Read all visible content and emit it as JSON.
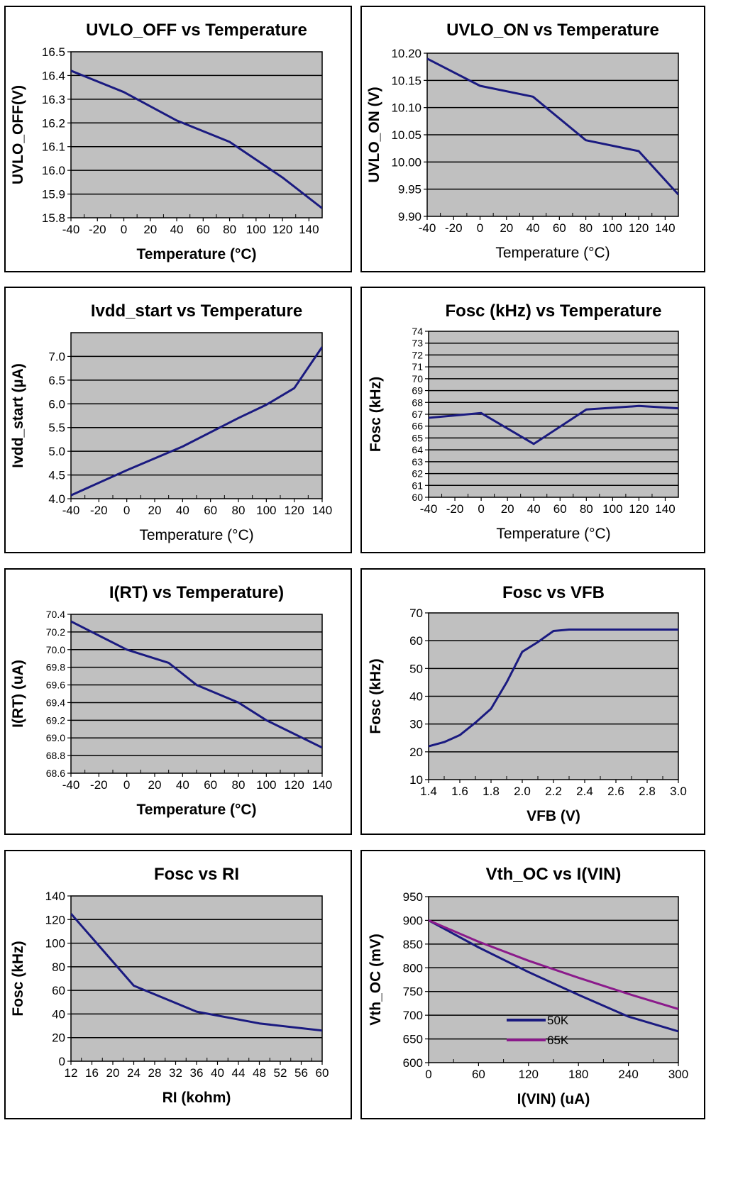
{
  "colors": {
    "plot_bg": "#c0c0c0",
    "line_primary": "#1a1a80",
    "line_secondary": "#8b1a8b",
    "grid": "#000000"
  },
  "chart_data": [
    {
      "id": "uvlo_off",
      "type": "line",
      "title": "UVLO_OFF vs Temperature",
      "xlabel": "Temperature (°C)",
      "ylabel": "UVLO_OFF(V)",
      "xlabel_bold": true,
      "xlim": [
        -40,
        150
      ],
      "ylim": [
        15.8,
        16.5
      ],
      "xticks": [
        -40,
        -20,
        0,
        20,
        40,
        60,
        80,
        100,
        120,
        140
      ],
      "xtick_labels": [
        "-40",
        "-20",
        "0",
        "20",
        "40",
        "60",
        "80",
        "100",
        "120",
        "140"
      ],
      "yticks": [
        15.8,
        15.9,
        16.0,
        16.1,
        16.2,
        16.3,
        16.4,
        16.5
      ],
      "ytick_labels": [
        "15.8",
        "15.9",
        "16.0",
        "16.1",
        "16.2",
        "16.3",
        "16.4",
        "16.5"
      ],
      "grid": true,
      "series": [
        {
          "x": [
            -40,
            0,
            40,
            80,
            120,
            150
          ],
          "y": [
            16.42,
            16.33,
            16.21,
            16.12,
            15.97,
            15.84
          ]
        }
      ]
    },
    {
      "id": "uvlo_on",
      "type": "line",
      "title": "UVLO_ON vs Temperature",
      "xlabel": "Temperature (°C)",
      "ylabel": "UVLO_ON (V)",
      "xlabel_bold": false,
      "xlim": [
        -40,
        150
      ],
      "ylim": [
        9.9,
        10.2
      ],
      "xticks": [
        -40,
        -20,
        0,
        20,
        40,
        60,
        80,
        100,
        120,
        140
      ],
      "xtick_labels": [
        "-40",
        "-20",
        "0",
        "20",
        "40",
        "60",
        "80",
        "100",
        "120",
        "140"
      ],
      "yticks": [
        9.9,
        9.95,
        10.0,
        10.05,
        10.1,
        10.15,
        10.2
      ],
      "ytick_labels": [
        "9.90",
        "9.95",
        "10.00",
        "10.05",
        "10.10",
        "10.15",
        "10.20"
      ],
      "grid": true,
      "series": [
        {
          "x": [
            -40,
            0,
            40,
            80,
            120,
            150
          ],
          "y": [
            10.19,
            10.14,
            10.12,
            10.04,
            10.02,
            9.94
          ]
        }
      ]
    },
    {
      "id": "ivdd_start",
      "type": "line",
      "title": "Ivdd_start vs Temperature",
      "xlabel": "Temperature (°C)",
      "ylabel": "Ivdd_start (µA)",
      "xlabel_bold": false,
      "xlim": [
        -40,
        140
      ],
      "ylim": [
        4.0,
        7.5
      ],
      "xticks": [
        -40,
        -20,
        0,
        20,
        40,
        60,
        80,
        100,
        120,
        140
      ],
      "xtick_labels": [
        "-40",
        "-20",
        "0",
        "20",
        "40",
        "60",
        "80",
        "100",
        "120",
        "140"
      ],
      "yticks": [
        4.0,
        4.5,
        5.0,
        5.5,
        6.0,
        6.5,
        7.0
      ],
      "ytick_labels": [
        "4.0",
        "4.5",
        "5.0",
        "5.5",
        "6.0",
        "6.5",
        "7.0"
      ],
      "grid": true,
      "series": [
        {
          "x": [
            -40,
            0,
            40,
            80,
            100,
            120,
            140
          ],
          "y": [
            4.07,
            4.6,
            5.1,
            5.7,
            5.98,
            6.33,
            7.2
          ]
        }
      ]
    },
    {
      "id": "fosc_temp",
      "type": "line",
      "title": "Fosc (kHz)  vs Temperature",
      "xlabel": "Temperature (°C)",
      "ylabel": "Fosc (kHz)",
      "xlabel_bold": false,
      "xlim": [
        -40,
        150
      ],
      "ylim": [
        60,
        74
      ],
      "xticks": [
        -40,
        -20,
        0,
        20,
        40,
        60,
        80,
        100,
        120,
        140
      ],
      "xtick_labels": [
        "-40",
        "-20",
        "0",
        "20",
        "40",
        "60",
        "80",
        "100",
        "120",
        "140"
      ],
      "yticks": [
        60,
        61,
        62,
        63,
        64,
        65,
        66,
        67,
        68,
        69,
        70,
        71,
        72,
        73,
        74
      ],
      "ytick_labels": [
        "60",
        "61",
        "62",
        "63",
        "64",
        "65",
        "66",
        "67",
        "68",
        "69",
        "70",
        "71",
        "72",
        "73",
        "74"
      ],
      "ytick_small": true,
      "grid": true,
      "series": [
        {
          "x": [
            -40,
            0,
            40,
            80,
            120,
            150
          ],
          "y": [
            66.7,
            67.1,
            64.5,
            67.4,
            67.7,
            67.5
          ]
        }
      ]
    },
    {
      "id": "irt_temp",
      "type": "line",
      "title": "I(RT) vs Temperature)",
      "xlabel": "Temperature (°C)",
      "ylabel": "I(RT) (uA)",
      "xlabel_bold": true,
      "xlim": [
        -40,
        140
      ],
      "ylim": [
        68.6,
        70.4
      ],
      "xticks": [
        -40,
        -20,
        0,
        20,
        40,
        60,
        80,
        100,
        120,
        140
      ],
      "xtick_labels": [
        "-40",
        "-20",
        "0",
        "20",
        "40",
        "60",
        "80",
        "100",
        "120",
        "140"
      ],
      "yticks": [
        68.6,
        68.8,
        69.0,
        69.2,
        69.4,
        69.6,
        69.8,
        70.0,
        70.2,
        70.4
      ],
      "ytick_labels": [
        "68.6",
        "68.8",
        "69.0",
        "69.2",
        "69.4",
        "69.6",
        "69.8",
        "70.0",
        "70.2",
        "70.4"
      ],
      "ytick_small": true,
      "grid": true,
      "series": [
        {
          "x": [
            -40,
            0,
            30,
            50,
            80,
            100,
            140
          ],
          "y": [
            70.32,
            70.0,
            69.85,
            69.6,
            69.4,
            69.2,
            68.89
          ]
        }
      ]
    },
    {
      "id": "fosc_vfb",
      "type": "line",
      "title": "Fosc vs  VFB",
      "xlabel": "VFB (V)",
      "ylabel": "Fosc (kHz)",
      "xlabel_bold": true,
      "xlim": [
        1.4,
        3.0
      ],
      "ylim": [
        10,
        70
      ],
      "xticks": [
        1.4,
        1.6,
        1.8,
        2.0,
        2.2,
        2.4,
        2.6,
        2.8,
        3.0
      ],
      "xtick_labels": [
        "1.4",
        "1.6",
        "1.8",
        "2.0",
        "2.2",
        "2.4",
        "2.6",
        "2.8",
        "3.0"
      ],
      "yticks": [
        10,
        20,
        30,
        40,
        50,
        60,
        70
      ],
      "ytick_labels": [
        "10",
        "20",
        "30",
        "40",
        "50",
        "60",
        "70"
      ],
      "grid": true,
      "series": [
        {
          "x": [
            1.4,
            1.5,
            1.6,
            1.7,
            1.8,
            1.9,
            2.0,
            2.1,
            2.2,
            2.3,
            3.0
          ],
          "y": [
            22,
            23.5,
            26,
            30.5,
            35.5,
            45,
            56,
            59.5,
            63.5,
            64,
            64
          ]
        }
      ]
    },
    {
      "id": "fosc_ri",
      "type": "line",
      "title": "Fosc vs  RI",
      "xlabel": "RI (kohm)",
      "ylabel": "Fosc (kHz)",
      "xlabel_bold": true,
      "xlim": [
        12,
        60
      ],
      "ylim": [
        0,
        140
      ],
      "xticks": [
        12,
        16,
        20,
        24,
        28,
        32,
        36,
        40,
        44,
        48,
        52,
        56,
        60
      ],
      "xtick_labels": [
        "12",
        "16",
        "20",
        "24",
        "28",
        "32",
        "36",
        "40",
        "44",
        "48",
        "52",
        "56",
        "60"
      ],
      "yticks": [
        0,
        20,
        40,
        60,
        80,
        100,
        120,
        140
      ],
      "ytick_labels": [
        "0",
        "20",
        "40",
        "60",
        "80",
        "100",
        "120",
        "140"
      ],
      "grid": true,
      "series": [
        {
          "x": [
            12,
            24,
            36,
            48,
            60
          ],
          "y": [
            125,
            64,
            42,
            32,
            26
          ]
        }
      ]
    },
    {
      "id": "vthoc_ivin",
      "type": "line",
      "title": "Vth_OC vs I(VIN)",
      "xlabel": "I(VIN) (uA)",
      "ylabel": "Vth_OC (mV)",
      "xlabel_bold": true,
      "xlim": [
        0,
        300
      ],
      "ylim": [
        600,
        950
      ],
      "xticks": [
        0,
        60,
        120,
        180,
        240,
        300
      ],
      "xtick_labels": [
        "0",
        "60",
        "120",
        "180",
        "240",
        "300"
      ],
      "yticks": [
        600,
        650,
        700,
        750,
        800,
        850,
        900,
        950
      ],
      "ytick_labels": [
        "600",
        "650",
        "700",
        "750",
        "800",
        "850",
        "900",
        "950"
      ],
      "grid": true,
      "legend": "bottom-center",
      "series": [
        {
          "name": "50K",
          "x": [
            0,
            60,
            120,
            180,
            240,
            300
          ],
          "y": [
            900,
            843,
            791,
            743,
            697,
            666
          ]
        },
        {
          "name": "65K",
          "x": [
            0,
            60,
            120,
            180,
            240,
            300
          ],
          "y": [
            900,
            855,
            815,
            779,
            745,
            713
          ]
        }
      ]
    }
  ]
}
